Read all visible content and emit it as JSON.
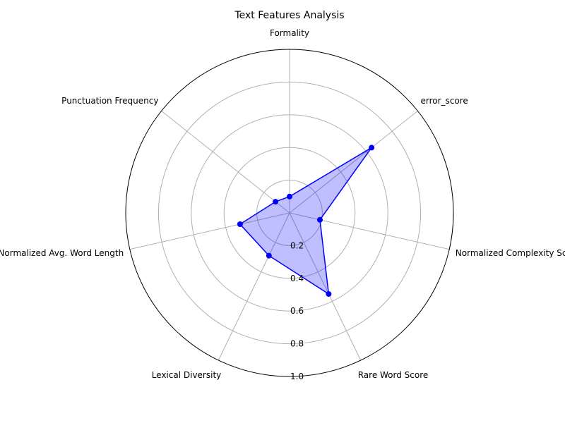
{
  "chart_data": {
    "type": "radar",
    "title": "Text Features Analysis",
    "categories": [
      "Formality",
      "error_score",
      "Normalized Complexity Score",
      "Rare Word Score",
      "Lexical Diversity",
      "Normalized Avg. Word Length",
      "Punctuation Frequency"
    ],
    "series": [
      {
        "values": [
          0.1,
          0.64,
          0.19,
          0.55,
          0.29,
          0.31,
          0.11
        ]
      }
    ],
    "rlim": [
      0,
      1.0
    ],
    "r_ticks": [
      0.2,
      0.4,
      0.6,
      0.8,
      1.0
    ],
    "r_tick_labels": [
      "0.2",
      "0.4",
      "0.6",
      "0.8",
      "1.0"
    ],
    "grid": true,
    "colors": {
      "line": "#0000ff",
      "marker": "#0000ff",
      "fill": "#0000ff",
      "grid": "#b0b0b0",
      "frame": "#000000"
    }
  }
}
